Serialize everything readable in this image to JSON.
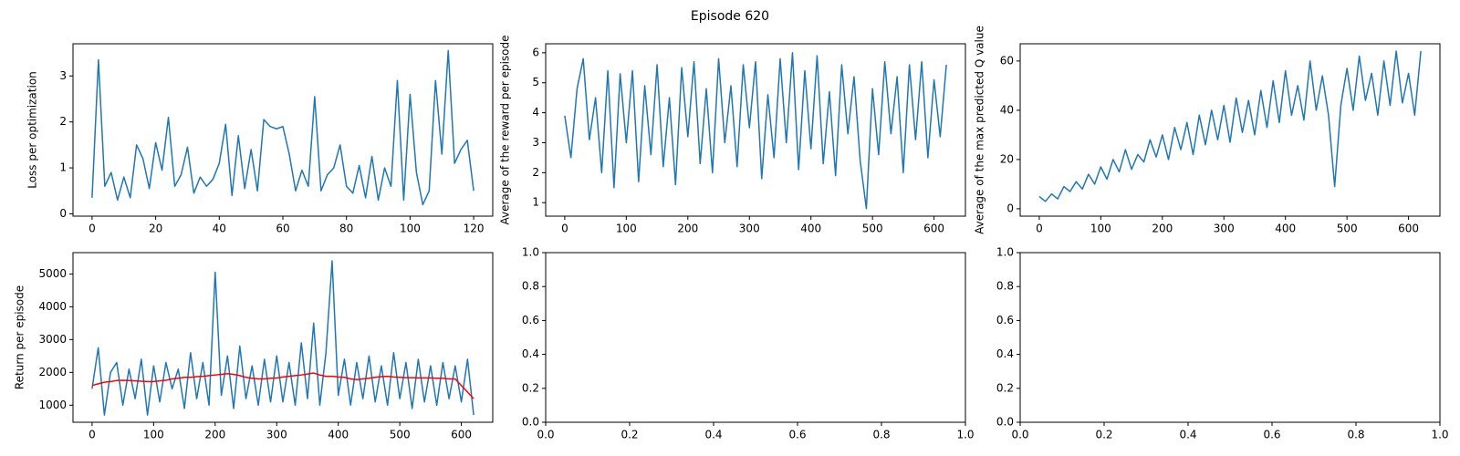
{
  "title": "Episode 620",
  "chart_data": [
    {
      "type": "line",
      "ylabel": "Loss per optimization",
      "x": [
        0,
        2,
        4,
        6,
        8,
        10,
        12,
        14,
        16,
        18,
        20,
        22,
        24,
        26,
        28,
        30,
        32,
        34,
        36,
        38,
        40,
        42,
        44,
        46,
        48,
        50,
        52,
        54,
        56,
        58,
        60,
        62,
        64,
        66,
        68,
        70,
        72,
        74,
        76,
        78,
        80,
        82,
        84,
        86,
        88,
        90,
        92,
        94,
        96,
        98,
        100,
        102,
        104,
        106,
        108,
        110,
        112,
        114,
        116,
        118,
        120
      ],
      "series": [
        {
          "color": "#1f77b4",
          "values": [
            0.35,
            3.35,
            0.6,
            0.9,
            0.3,
            0.8,
            0.35,
            1.5,
            1.2,
            0.55,
            1.55,
            0.95,
            2.1,
            0.6,
            0.85,
            1.45,
            0.45,
            0.8,
            0.6,
            0.75,
            1.1,
            1.95,
            0.4,
            1.7,
            0.55,
            1.4,
            0.5,
            2.05,
            1.9,
            1.85,
            1.9,
            1.3,
            0.5,
            0.95,
            0.6,
            2.55,
            0.5,
            0.85,
            1.0,
            1.5,
            0.6,
            0.45,
            1.05,
            0.35,
            1.25,
            0.3,
            1.0,
            0.6,
            2.9,
            0.3,
            2.6,
            0.9,
            0.2,
            0.5,
            2.9,
            1.3,
            3.55,
            1.1,
            1.4,
            1.6,
            0.5
          ]
        }
      ],
      "xlim": [
        -6,
        126
      ],
      "xticks": [
        0,
        20,
        40,
        60,
        80,
        100,
        120
      ],
      "ylim": [
        -0.05,
        3.7
      ],
      "yticks": [
        0,
        1,
        2,
        3
      ]
    },
    {
      "type": "line",
      "ylabel": "Average of the reward per episode",
      "x": [
        0,
        10,
        20,
        30,
        40,
        50,
        60,
        70,
        80,
        90,
        100,
        110,
        120,
        130,
        140,
        150,
        160,
        170,
        180,
        190,
        200,
        210,
        220,
        230,
        240,
        250,
        260,
        270,
        280,
        290,
        300,
        310,
        320,
        330,
        340,
        350,
        360,
        370,
        380,
        390,
        400,
        410,
        420,
        430,
        440,
        450,
        460,
        470,
        480,
        490,
        500,
        510,
        520,
        530,
        540,
        550,
        560,
        570,
        580,
        590,
        600,
        610,
        620
      ],
      "series": [
        {
          "color": "#1f77b4",
          "values": [
            3.9,
            2.5,
            4.8,
            5.8,
            3.1,
            4.5,
            2.0,
            5.4,
            1.5,
            5.3,
            3.0,
            5.4,
            1.7,
            4.9,
            2.6,
            5.6,
            2.2,
            4.5,
            1.6,
            5.5,
            3.2,
            5.7,
            2.3,
            4.8,
            2.0,
            5.8,
            3.0,
            4.9,
            2.2,
            5.6,
            3.5,
            5.7,
            1.8,
            4.6,
            2.5,
            5.8,
            3.0,
            6.0,
            2.1,
            5.4,
            2.8,
            5.9,
            2.3,
            4.7,
            1.9,
            5.6,
            3.3,
            5.2,
            2.4,
            0.8,
            4.8,
            2.6,
            5.7,
            3.3,
            5.2,
            2.0,
            5.6,
            3.1,
            5.7,
            2.5,
            5.1,
            3.2,
            5.6
          ]
        }
      ],
      "xlim": [
        -31,
        651
      ],
      "xticks": [
        0,
        100,
        200,
        300,
        400,
        500,
        600
      ],
      "ylim": [
        0.55,
        6.3
      ],
      "yticks": [
        1,
        2,
        3,
        4,
        5,
        6
      ]
    },
    {
      "type": "line",
      "ylabel": "Average of the max predicted Q value",
      "x": [
        0,
        10,
        20,
        30,
        40,
        50,
        60,
        70,
        80,
        90,
        100,
        110,
        120,
        130,
        140,
        150,
        160,
        170,
        180,
        190,
        200,
        210,
        220,
        230,
        240,
        250,
        260,
        270,
        280,
        290,
        300,
        310,
        320,
        330,
        340,
        350,
        360,
        370,
        380,
        390,
        400,
        410,
        420,
        430,
        440,
        450,
        460,
        470,
        480,
        490,
        500,
        510,
        520,
        530,
        540,
        550,
        560,
        570,
        580,
        590,
        600,
        610,
        620
      ],
      "series": [
        {
          "color": "#1f77b4",
          "values": [
            5,
            3,
            6,
            4,
            9,
            7,
            11,
            8,
            14,
            10,
            17,
            12,
            20,
            15,
            24,
            16,
            22,
            19,
            28,
            21,
            30,
            20,
            33,
            24,
            35,
            22,
            38,
            26,
            40,
            28,
            42,
            27,
            45,
            31,
            44,
            30,
            48,
            33,
            52,
            35,
            56,
            38,
            50,
            36,
            60,
            40,
            54,
            38,
            9,
            42,
            57,
            40,
            62,
            44,
            55,
            38,
            60,
            42,
            64,
            43,
            55,
            38,
            64
          ]
        }
      ],
      "xlim": [
        -31,
        651
      ],
      "xticks": [
        0,
        100,
        200,
        300,
        400,
        500,
        600
      ],
      "ylim": [
        -3,
        67
      ],
      "yticks": [
        0,
        20,
        40,
        60
      ]
    },
    {
      "type": "line",
      "ylabel": "Return per episode",
      "x": [
        0,
        10,
        20,
        30,
        40,
        50,
        60,
        70,
        80,
        90,
        100,
        110,
        120,
        130,
        140,
        150,
        160,
        170,
        180,
        190,
        200,
        210,
        220,
        230,
        240,
        250,
        260,
        270,
        280,
        290,
        300,
        310,
        320,
        330,
        340,
        350,
        360,
        370,
        380,
        390,
        400,
        410,
        420,
        430,
        440,
        450,
        460,
        470,
        480,
        490,
        500,
        510,
        520,
        530,
        540,
        550,
        560,
        570,
        580,
        590,
        600,
        610,
        620
      ],
      "series": [
        {
          "color": "#1f77b4",
          "values": [
            1500,
            2750,
            700,
            2000,
            2300,
            1000,
            2100,
            1200,
            2400,
            700,
            2200,
            1100,
            2300,
            1500,
            2100,
            900,
            2600,
            1200,
            2300,
            1000,
            5050,
            1300,
            2500,
            900,
            2800,
            1200,
            2200,
            1000,
            2400,
            1100,
            2500,
            1100,
            2300,
            1000,
            2900,
            1200,
            3500,
            1000,
            2600,
            5400,
            1300,
            2400,
            1000,
            2300,
            1200,
            2500,
            1100,
            2200,
            1000,
            2600,
            1200,
            2300,
            900,
            2400,
            1100,
            2200,
            1000,
            2300,
            1200,
            2200,
            1100,
            2400,
            700
          ]
        },
        {
          "color": "red",
          "values": [
            1600,
            1650,
            1700,
            1720,
            1750,
            1760,
            1750,
            1740,
            1730,
            1720,
            1720,
            1740,
            1760,
            1800,
            1820,
            1850,
            1850,
            1870,
            1880,
            1900,
            1920,
            1940,
            1960,
            1940,
            1900,
            1850,
            1820,
            1800,
            1800,
            1820,
            1830,
            1860,
            1880,
            1900,
            1920,
            1950,
            1980,
            1920,
            1880,
            1880,
            1860,
            1850,
            1800,
            1780,
            1800,
            1820,
            1850,
            1870,
            1880,
            1860,
            1850,
            1840,
            1840,
            1830,
            1830,
            1830,
            1820,
            1820,
            1800,
            1800,
            1600,
            1400,
            1200
          ]
        }
      ],
      "xlim": [
        -31,
        651
      ],
      "xticks": [
        0,
        100,
        200,
        300,
        400,
        500,
        600
      ],
      "ylim": [
        480,
        5650
      ],
      "yticks": [
        1000,
        2000,
        3000,
        4000,
        5000
      ]
    },
    {
      "type": "line",
      "xlim": [
        0,
        1
      ],
      "xticks": [
        {
          "value": 0,
          "label": "0.0"
        },
        {
          "value": 0.2,
          "label": "0.2"
        },
        {
          "value": 0.4,
          "label": "0.4"
        },
        {
          "value": 0.6,
          "label": "0.6"
        },
        {
          "value": 0.8,
          "label": "0.8"
        },
        {
          "value": 1,
          "label": "1.0"
        }
      ],
      "ylim": [
        0,
        1
      ],
      "yticks": [
        {
          "value": 0,
          "label": "0.0"
        },
        {
          "value": 0.2,
          "label": "0.2"
        },
        {
          "value": 0.4,
          "label": "0.4"
        },
        {
          "value": 0.6,
          "label": "0.6"
        },
        {
          "value": 0.8,
          "label": "0.8"
        },
        {
          "value": 1,
          "label": "1.0"
        }
      ]
    },
    {
      "type": "line",
      "xlim": [
        0,
        1
      ],
      "xticks": [
        {
          "value": 0,
          "label": "0.0"
        },
        {
          "value": 0.2,
          "label": "0.2"
        },
        {
          "value": 0.4,
          "label": "0.4"
        },
        {
          "value": 0.6,
          "label": "0.6"
        },
        {
          "value": 0.8,
          "label": "0.8"
        },
        {
          "value": 1,
          "label": "1.0"
        }
      ],
      "ylim": [
        0,
        1
      ],
      "yticks": [
        {
          "value": 0,
          "label": "0.0"
        },
        {
          "value": 0.2,
          "label": "0.2"
        },
        {
          "value": 0.4,
          "label": "0.4"
        },
        {
          "value": 0.6,
          "label": "0.6"
        },
        {
          "value": 0.8,
          "label": "0.8"
        },
        {
          "value": 1,
          "label": "1.0"
        }
      ]
    }
  ]
}
